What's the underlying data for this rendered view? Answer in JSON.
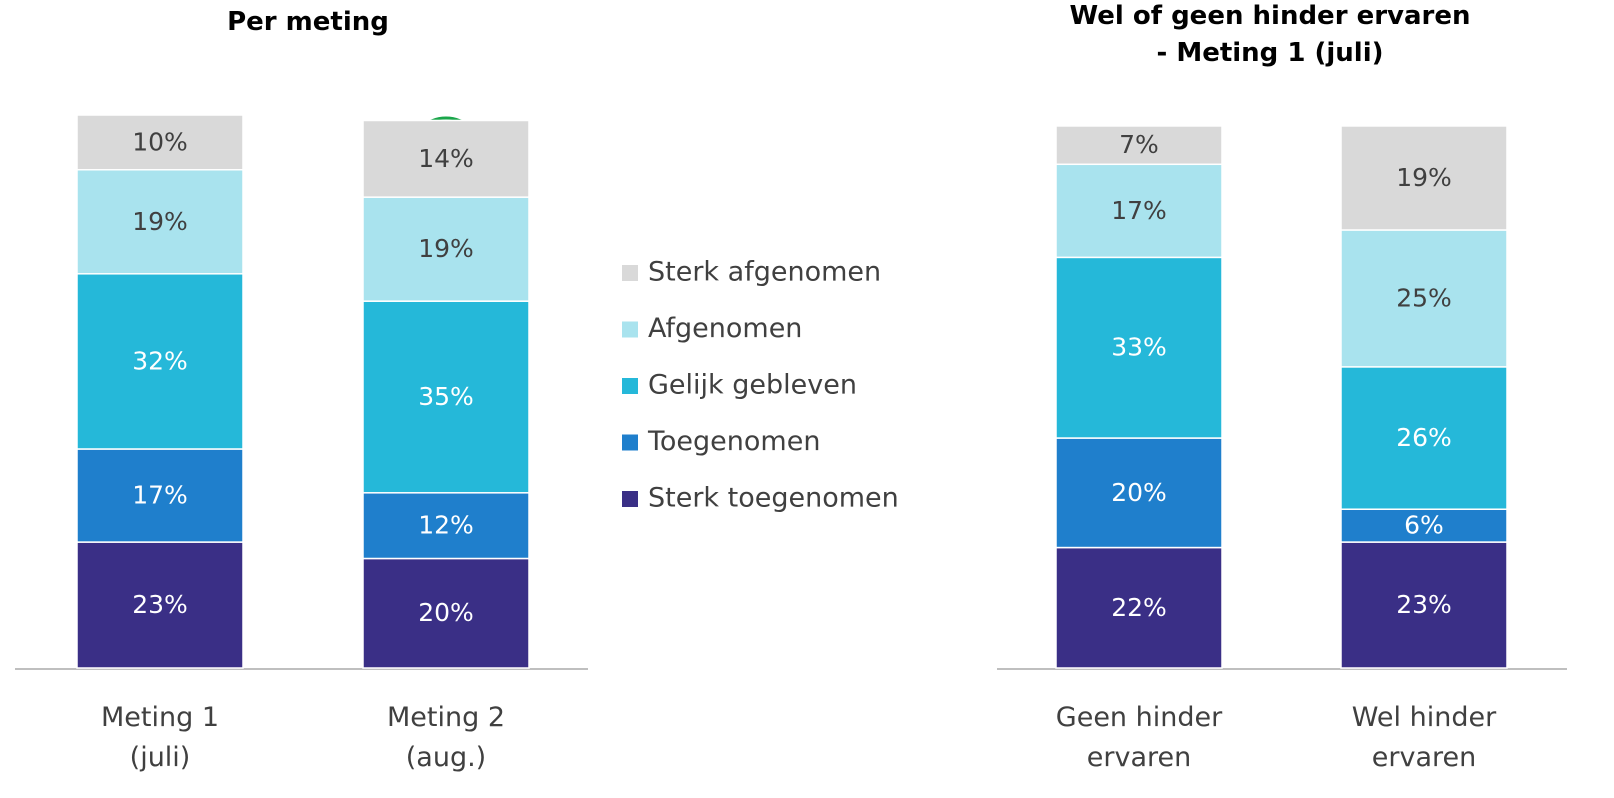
{
  "chart_data": [
    {
      "type": "stacked_bar",
      "title": "Per meting",
      "categories": [
        "Meting 1\n(juli)",
        "Meting 2\n(aug.)"
      ],
      "series": [
        {
          "name": "Sterk toegenomen",
          "color": "#3a2f86",
          "values": [
            23,
            20
          ],
          "value_labels": [
            "23%",
            "20%"
          ]
        },
        {
          "name": "Toegenomen",
          "color": "#1f7fcc",
          "values": [
            17,
            12
          ],
          "value_labels": [
            "17%",
            "12%"
          ]
        },
        {
          "name": "Gelijk gebleven",
          "color": "#25b8d9",
          "values": [
            32,
            35
          ],
          "value_labels": [
            "32%",
            "35%"
          ]
        },
        {
          "name": "Afgenomen",
          "color": "#a9e3ee",
          "values": [
            19,
            19
          ],
          "value_labels": [
            "19%",
            "19%"
          ]
        },
        {
          "name": "Sterk afgenomen",
          "color": "#d9d9d9",
          "values": [
            10,
            14
          ],
          "value_labels": [
            "10%",
            "14%"
          ]
        }
      ]
    },
    {
      "type": "stacked_bar",
      "title": "Wel of geen hinder ervaren\n- Meting 1 (juli)",
      "categories": [
        "Geen hinder\nervaren",
        "Wel hinder\nervaren"
      ],
      "series": [
        {
          "color": "#3a2f86",
          "values": [
            22,
            23
          ],
          "value_labels": [
            "22%",
            "23%"
          ]
        },
        {
          "color": "#1f7fcc",
          "values": [
            20,
            6
          ],
          "value_labels": [
            "20%",
            "6%"
          ]
        },
        {
          "color": "#25b8d9",
          "values": [
            33,
            26
          ],
          "value_labels": [
            "33%",
            "26%"
          ]
        },
        {
          "color": "#a9e3ee",
          "values": [
            17,
            25
          ],
          "value_labels": [
            "17%",
            "25%"
          ]
        },
        {
          "color": "#d9d9d9",
          "values": [
            7,
            19
          ],
          "value_labels": [
            "7%",
            "19%"
          ]
        }
      ]
    }
  ]
}
